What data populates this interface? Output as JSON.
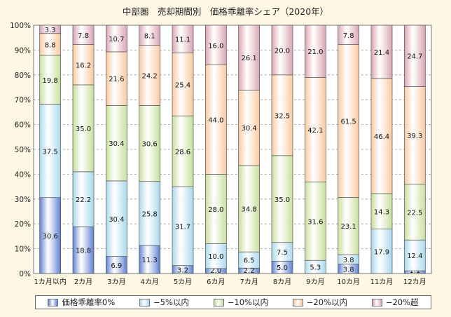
{
  "chart_data": {
    "type": "bar",
    "stacked": true,
    "title": "中部圏　売却期間別　価格乖離率シェア（2020年）",
    "categories": [
      "1カ月以内",
      "2カ月",
      "3カ月",
      "4カ月",
      "5カ月",
      "6カ月",
      "7カ月",
      "8カ月",
      "9カ月",
      "10カ月",
      "11カ月",
      "12カ月"
    ],
    "ylim": [
      0,
      100
    ],
    "yticks": [
      "0%",
      "10%",
      "20%",
      "30%",
      "40%",
      "50%",
      "60%",
      "70%",
      "80%",
      "90%",
      "100%"
    ],
    "grid": "horizontal-dashed",
    "legend_position": "bottom",
    "series": [
      {
        "name": "価格乖離率0%",
        "color": "#5E7FD0",
        "values": [
          30.6,
          18.8,
          6.9,
          11.3,
          3.2,
          2.0,
          2.2,
          5.0,
          0,
          3.8,
          0,
          1.1
        ]
      },
      {
        "name": "−5%以内",
        "color": "#A7D8EC",
        "values": [
          37.5,
          22.2,
          30.4,
          25.8,
          31.7,
          10.0,
          6.5,
          7.5,
          5.3,
          3.8,
          17.9,
          12.4
        ]
      },
      {
        "name": "−10%以内",
        "color": "#C6DE9A",
        "values": [
          19.8,
          35.0,
          30.4,
          30.6,
          28.6,
          28.0,
          34.8,
          35.0,
          31.6,
          23.1,
          14.3,
          22.5
        ]
      },
      {
        "name": "−20%以内",
        "color": "#F9C89D",
        "values": [
          8.8,
          16.2,
          21.6,
          24.2,
          25.4,
          44.0,
          30.4,
          32.5,
          42.1,
          61.5,
          46.4,
          39.3
        ]
      },
      {
        "name": "−20%超",
        "color": "#D9A4AE",
        "values": [
          3.3,
          7.8,
          10.7,
          8.1,
          11.1,
          16.0,
          26.1,
          20.0,
          21.0,
          7.8,
          21.4,
          24.7
        ]
      }
    ],
    "data_labels": [
      [
        "30.6",
        "18.8",
        "6.9",
        "11.3",
        "3.2",
        "2.0",
        "2.2",
        "5.0",
        "",
        "3.8",
        "",
        "1.1"
      ],
      [
        "37.5",
        "22.2",
        "30.4",
        "25.8",
        "31.7",
        "10.0",
        "6.5",
        "7.5",
        "5.3",
        "3.8",
        "17.9",
        "12.4"
      ],
      [
        "19.8",
        "35.0",
        "30.4",
        "30.6",
        "28.6",
        "28.0",
        "34.8",
        "35.0",
        "31.6",
        "23.1",
        "14.3",
        "22.5"
      ],
      [
        "8.8",
        "16.2",
        "21.6",
        "24.2",
        "25.4",
        "44.0",
        "30.4",
        "32.5",
        "42.1",
        "61.5",
        "46.4",
        "39.3"
      ],
      [
        "3.3",
        "7.8",
        "10.7",
        "8.1",
        "11.1",
        "16.0",
        "26.1",
        "20.0",
        "21.0",
        "7.8",
        "21.4",
        "24.7"
      ]
    ]
  }
}
